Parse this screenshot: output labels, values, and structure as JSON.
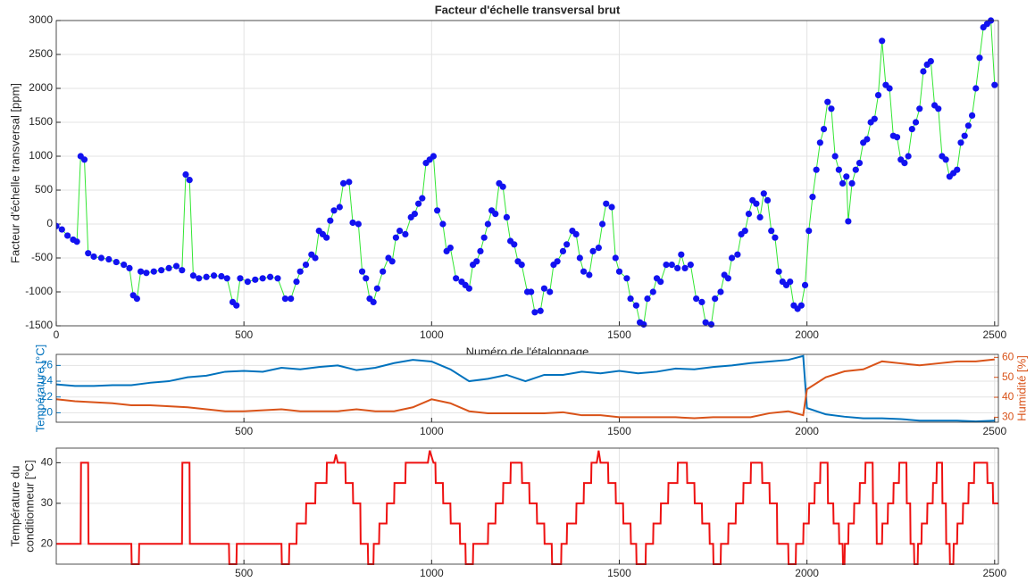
{
  "chart_data": [
    {
      "type": "line",
      "title": "Facteur d'échelle transversal brut",
      "xlabel": "Numéro de l'étalonnage",
      "ylabel": "Facteur d'échelle transversal [ppm]",
      "xlim": [
        0,
        2510
      ],
      "ylim": [
        -1500,
        3000
      ],
      "xticks": [
        0,
        500,
        1000,
        1500,
        2000,
        2500
      ],
      "yticks": [
        -1500,
        -1000,
        -500,
        0,
        500,
        1000,
        1500,
        2000,
        2500,
        3000
      ],
      "grid": true,
      "color": "#33e633",
      "marker_color": "#1212f0",
      "markers": true,
      "x": [
        0,
        15,
        30,
        45,
        55,
        65,
        75,
        85,
        100,
        120,
        140,
        160,
        180,
        195,
        205,
        215,
        225,
        240,
        260,
        280,
        300,
        320,
        335,
        345,
        355,
        365,
        380,
        400,
        420,
        440,
        455,
        470,
        480,
        490,
        510,
        530,
        550,
        570,
        590,
        610,
        625,
        640,
        650,
        665,
        680,
        690,
        700,
        710,
        720,
        730,
        740,
        755,
        765,
        780,
        790,
        805,
        815,
        825,
        835,
        845,
        855,
        870,
        885,
        895,
        905,
        915,
        930,
        945,
        955,
        965,
        975,
        985,
        995,
        1005,
        1015,
        1030,
        1040,
        1050,
        1065,
        1080,
        1090,
        1100,
        1110,
        1120,
        1130,
        1140,
        1150,
        1160,
        1170,
        1180,
        1190,
        1200,
        1210,
        1220,
        1230,
        1240,
        1255,
        1265,
        1275,
        1290,
        1300,
        1315,
        1325,
        1335,
        1350,
        1360,
        1375,
        1385,
        1395,
        1405,
        1420,
        1430,
        1445,
        1455,
        1465,
        1480,
        1490,
        1500,
        1520,
        1530,
        1545,
        1555,
        1565,
        1575,
        1590,
        1600,
        1610,
        1625,
        1640,
        1655,
        1665,
        1675,
        1690,
        1705,
        1720,
        1730,
        1745,
        1755,
        1770,
        1780,
        1790,
        1800,
        1815,
        1825,
        1835,
        1845,
        1855,
        1865,
        1875,
        1885,
        1895,
        1905,
        1915,
        1925,
        1935,
        1945,
        1955,
        1965,
        1975,
        1985,
        1995,
        2005,
        2015,
        2025,
        2035,
        2045,
        2055,
        2065,
        2075,
        2085,
        2095,
        2105,
        2110,
        2120,
        2130,
        2140,
        2150,
        2160,
        2170,
        2180,
        2190,
        2200,
        2210,
        2220,
        2230,
        2240,
        2250,
        2260,
        2270,
        2280,
        2290,
        2300,
        2310,
        2320,
        2330,
        2340,
        2350,
        2360,
        2370,
        2380,
        2390,
        2400,
        2410,
        2420,
        2430,
        2440,
        2450,
        2460,
        2470,
        2480,
        2490,
        2500
      ],
      "values": [
        -30,
        -80,
        -170,
        -230,
        -260,
        1000,
        950,
        -430,
        -480,
        -500,
        -520,
        -560,
        -600,
        -650,
        -1050,
        -1100,
        -700,
        -720,
        -700,
        -680,
        -650,
        -620,
        -680,
        730,
        650,
        -760,
        -800,
        -780,
        -760,
        -770,
        -800,
        -1150,
        -1200,
        -800,
        -850,
        -820,
        -800,
        -780,
        -800,
        -1100,
        -1100,
        -850,
        -700,
        -600,
        -450,
        -500,
        -100,
        -150,
        -200,
        50,
        200,
        250,
        600,
        620,
        20,
        0,
        -700,
        -800,
        -1100,
        -1150,
        -950,
        -700,
        -500,
        -550,
        -200,
        -100,
        -150,
        100,
        150,
        300,
        380,
        900,
        950,
        1000,
        200,
        0,
        -400,
        -350,
        -800,
        -850,
        -900,
        -950,
        -600,
        -550,
        -400,
        -200,
        0,
        200,
        150,
        600,
        550,
        100,
        -250,
        -300,
        -550,
        -600,
        -1000,
        -1000,
        -1300,
        -1280,
        -950,
        -1000,
        -600,
        -550,
        -400,
        -300,
        -100,
        -150,
        -500,
        -700,
        -750,
        -400,
        -350,
        0,
        300,
        250,
        -500,
        -700,
        -800,
        -1100,
        -1200,
        -1450,
        -1480,
        -1100,
        -1000,
        -800,
        -850,
        -600,
        -600,
        -650,
        -450,
        -650,
        -600,
        -1100,
        -1150,
        -1450,
        -1480,
        -1100,
        -1000,
        -750,
        -800,
        -500,
        -450,
        -150,
        -100,
        150,
        350,
        300,
        100,
        450,
        350,
        -100,
        -200,
        -700,
        -850,
        -900,
        -850,
        -1200,
        -1250,
        -1200,
        -900,
        -100,
        400,
        800,
        1200,
        1400,
        1800,
        1700,
        1000,
        800,
        600,
        700,
        40,
        600,
        800,
        900,
        1200,
        1250,
        1500,
        1550,
        1900,
        2700,
        2050,
        2000,
        1300,
        1280,
        950,
        900,
        1000,
        1400,
        1500,
        1700,
        2250,
        2350,
        2400,
        1750,
        1700,
        1000,
        950,
        700,
        750,
        800,
        1200,
        1300,
        1450,
        1600,
        2000,
        2450,
        2900,
        2950,
        3000,
        2050
      ]
    },
    {
      "type": "line",
      "ylabel": "Température [°C]",
      "y2label": "Humidité [%]",
      "xlim": [
        0,
        2510
      ],
      "ylim": [
        18.8,
        27.4
      ],
      "y2lim": [
        27.5,
        61.5
      ],
      "xticks": [
        500,
        1000,
        1500,
        2000,
        2500
      ],
      "yticks": [
        20,
        22,
        24,
        26
      ],
      "y2ticks": [
        30,
        40,
        50,
        60
      ],
      "grid": true,
      "x": [
        0,
        50,
        100,
        150,
        200,
        250,
        300,
        350,
        400,
        450,
        500,
        550,
        600,
        650,
        700,
        750,
        800,
        850,
        900,
        950,
        1000,
        1050,
        1100,
        1150,
        1200,
        1250,
        1300,
        1350,
        1400,
        1450,
        1500,
        1550,
        1600,
        1650,
        1700,
        1750,
        1800,
        1850,
        1900,
        1950,
        1990,
        2000,
        2050,
        2100,
        2150,
        2200,
        2250,
        2300,
        2350,
        2400,
        2450,
        2500
      ],
      "series": [
        {
          "color": "#0072bd",
          "values": [
            23.6,
            23.4,
            23.4,
            23.5,
            23.5,
            23.8,
            24.0,
            24.5,
            24.7,
            25.2,
            25.3,
            25.2,
            25.7,
            25.5,
            25.8,
            26.0,
            25.4,
            25.7,
            26.3,
            26.7,
            26.5,
            25.5,
            24.0,
            24.3,
            24.8,
            24.0,
            24.8,
            24.8,
            25.2,
            25.0,
            25.3,
            25.0,
            25.2,
            25.6,
            25.5,
            25.8,
            26.0,
            26.3,
            26.5,
            26.7,
            27.2,
            20.6,
            19.8,
            19.5,
            19.3,
            19.3,
            19.2,
            19.0,
            19.0,
            19.0,
            18.9,
            19.0
          ]
        },
        {
          "color": "#d95319",
          "axis": "y2",
          "values": [
            39,
            38,
            37.5,
            37,
            36,
            36,
            35.5,
            35,
            34,
            33,
            33,
            33.5,
            34,
            33,
            33,
            33,
            34,
            33,
            33,
            35,
            39,
            37,
            33,
            32,
            32,
            32,
            32,
            32.5,
            31,
            31,
            30,
            30,
            30,
            30,
            29.5,
            30,
            30,
            30,
            32,
            33,
            31,
            44,
            50,
            53,
            54,
            58,
            57,
            56,
            57,
            58,
            58,
            59
          ]
        }
      ]
    },
    {
      "type": "line",
      "ylabel": [
        "Température du",
        "conditionneur [°C]"
      ],
      "xlim": [
        0,
        2510
      ],
      "ylim": [
        15,
        43.6
      ],
      "xticks": [
        500,
        1000,
        1500,
        2000,
        2500
      ],
      "yticks": [
        20,
        30,
        40
      ],
      "grid": true,
      "color": "#ee1111",
      "x": [
        0,
        65,
        66,
        85,
        86,
        200,
        201,
        220,
        221,
        335,
        336,
        355,
        356,
        460,
        461,
        480,
        481,
        600,
        601,
        620,
        621,
        640,
        641,
        665,
        666,
        690,
        691,
        720,
        721,
        740,
        745,
        750,
        770,
        771,
        790,
        791,
        810,
        811,
        830,
        831,
        845,
        846,
        860,
        861,
        880,
        881,
        900,
        901,
        930,
        931,
        990,
        995,
        1005,
        1010,
        1011,
        1030,
        1031,
        1050,
        1051,
        1075,
        1076,
        1090,
        1091,
        1110,
        1111,
        1150,
        1151,
        1170,
        1171,
        1190,
        1191,
        1210,
        1211,
        1240,
        1241,
        1260,
        1261,
        1280,
        1281,
        1300,
        1301,
        1320,
        1321,
        1345,
        1346,
        1360,
        1361,
        1385,
        1386,
        1405,
        1406,
        1425,
        1426,
        1440,
        1445,
        1450,
        1470,
        1471,
        1490,
        1491,
        1510,
        1511,
        1530,
        1531,
        1545,
        1546,
        1570,
        1571,
        1590,
        1591,
        1610,
        1611,
        1630,
        1631,
        1655,
        1656,
        1680,
        1681,
        1700,
        1701,
        1720,
        1721,
        1740,
        1741,
        1750,
        1751,
        1770,
        1771,
        1790,
        1791,
        1810,
        1811,
        1830,
        1831,
        1850,
        1851,
        1880,
        1881,
        1900,
        1901,
        1920,
        1921,
        1950,
        1951,
        1970,
        1971,
        1990,
        1991,
        2005,
        2006,
        2020,
        2021,
        2035,
        2036,
        2055,
        2056,
        2070,
        2071,
        2085,
        2086,
        2095,
        2096,
        2100,
        2101,
        2110,
        2111,
        2125,
        2126,
        2140,
        2141,
        2155,
        2156,
        2175,
        2176,
        2185,
        2186,
        2200,
        2201,
        2215,
        2216,
        2230,
        2231,
        2245,
        2246,
        2265,
        2266,
        2275,
        2276,
        2285,
        2286,
        2295,
        2296,
        2305,
        2306,
        2320,
        2321,
        2335,
        2336,
        2345,
        2346,
        2360,
        2361,
        2370,
        2371,
        2380,
        2381,
        2390,
        2391,
        2400,
        2401,
        2415,
        2416,
        2430,
        2431,
        2445,
        2446,
        2480,
        2481,
        2495,
        2496,
        2510
      ],
      "values": [
        20,
        20,
        40,
        40,
        20,
        20,
        15,
        15,
        20,
        20,
        40,
        40,
        20,
        20,
        15,
        15,
        20,
        20,
        15,
        15,
        20,
        20,
        25,
        25,
        30,
        30,
        35,
        35,
        40,
        40,
        42,
        40,
        40,
        35,
        35,
        30,
        30,
        20,
        20,
        15,
        15,
        20,
        20,
        25,
        25,
        30,
        30,
        35,
        35,
        40,
        40,
        43,
        40,
        40,
        35,
        35,
        30,
        30,
        25,
        25,
        20,
        20,
        15,
        15,
        20,
        20,
        25,
        25,
        30,
        30,
        35,
        35,
        40,
        40,
        35,
        35,
        30,
        30,
        25,
        25,
        20,
        20,
        15,
        15,
        20,
        20,
        25,
        25,
        30,
        30,
        35,
        35,
        40,
        40,
        43,
        40,
        40,
        35,
        35,
        30,
        30,
        25,
        25,
        20,
        20,
        15,
        15,
        20,
        20,
        25,
        25,
        30,
        30,
        35,
        35,
        40,
        40,
        35,
        35,
        30,
        30,
        25,
        25,
        20,
        20,
        15,
        15,
        20,
        20,
        25,
        25,
        30,
        30,
        35,
        35,
        40,
        40,
        35,
        35,
        30,
        30,
        20,
        20,
        15,
        15,
        20,
        20,
        25,
        25,
        30,
        30,
        35,
        35,
        40,
        40,
        30,
        30,
        25,
        25,
        20,
        20,
        15,
        15,
        20,
        20,
        25,
        25,
        30,
        30,
        35,
        35,
        40,
        40,
        30,
        30,
        20,
        20,
        25,
        25,
        30,
        30,
        35,
        35,
        40,
        40,
        30,
        30,
        20,
        20,
        15,
        15,
        20,
        20,
        25,
        25,
        30,
        30,
        35,
        35,
        40,
        40,
        30,
        30,
        20,
        20,
        15,
        15,
        20,
        20,
        25,
        25,
        30,
        30,
        35,
        35,
        40,
        40,
        35,
        35,
        30,
        30
      ]
    }
  ]
}
